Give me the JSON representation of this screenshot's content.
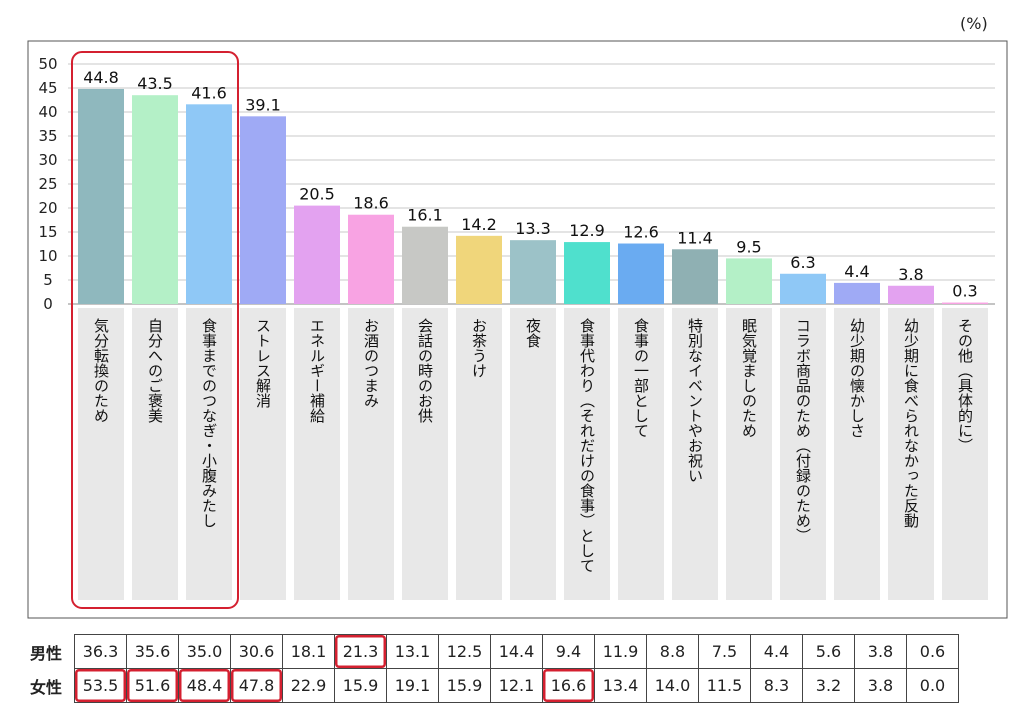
{
  "unit_label": "(%)",
  "colors": {
    "bars": [
      "#8fb8be",
      "#b4f0c7",
      "#8fc8f6",
      "#9faaf5",
      "#e3a2f0",
      "#f8a3e3",
      "#c7c8c5",
      "#f0d67b",
      "#9cc2c8",
      "#4fe0cd",
      "#6aabf1",
      "#8fb0b3",
      "#b4f0c7",
      "#8fc8f6",
      "#9faaf5",
      "#e3a2f0",
      "#f8a3e3"
    ],
    "highlight": "#d42030",
    "label_band": "#e8e8e8"
  },
  "chart_data": {
    "type": "bar",
    "categories": [
      "気分転換のため",
      "自分へのご褒美",
      "食事までのつなぎ・小腹みたし",
      "ストレス解消",
      "エネルギー補給",
      "お酒のつまみ",
      "会話の時のお供",
      "お茶うけ",
      "夜食",
      "食事代わり（それだけの食事）として",
      "食事の一部として",
      "特別なイベントやお祝い",
      "眠気覚ましのため",
      "コラボ商品のため（付録のため）",
      "幼少期の懐かしさ",
      "幼少期に食べられなかった反動",
      "その他（具体的に）"
    ],
    "values": [
      44.8,
      43.5,
      41.6,
      39.1,
      20.5,
      18.6,
      16.1,
      14.2,
      13.3,
      12.9,
      12.6,
      11.4,
      9.5,
      6.3,
      4.4,
      3.8,
      0.3
    ],
    "value_labels": [
      "44.8",
      "43.5",
      "41.6",
      "39.1",
      "20.5",
      "18.6",
      "16.1",
      "14.2",
      "13.3",
      "12.9",
      "12.6",
      "11.4",
      "9.5",
      "6.3",
      "4.4",
      "3.8",
      "0.3"
    ],
    "ylim": [
      0,
      50
    ],
    "yticks": [
      "0",
      "5",
      "10",
      "15",
      "20",
      "25",
      "30",
      "35",
      "40",
      "45",
      "50"
    ],
    "grid": true,
    "highlighted_categories": [
      0,
      1,
      2
    ]
  },
  "table": {
    "rows": [
      {
        "label": "男性",
        "values": [
          "36.3",
          "35.6",
          "35.0",
          "30.6",
          "18.1",
          "21.3",
          "13.1",
          "12.5",
          "14.4",
          "9.4",
          "11.9",
          "8.8",
          "7.5",
          "4.4",
          "5.6",
          "3.8",
          "0.6"
        ],
        "highlight": [
          5
        ]
      },
      {
        "label": "女性",
        "values": [
          "53.5",
          "51.6",
          "48.4",
          "47.8",
          "22.9",
          "15.9",
          "19.1",
          "15.9",
          "12.1",
          "16.6",
          "13.4",
          "14.0",
          "11.5",
          "8.3",
          "3.2",
          "3.8",
          "0.0"
        ],
        "highlight": [
          0,
          1,
          2,
          3,
          9
        ]
      }
    ]
  }
}
